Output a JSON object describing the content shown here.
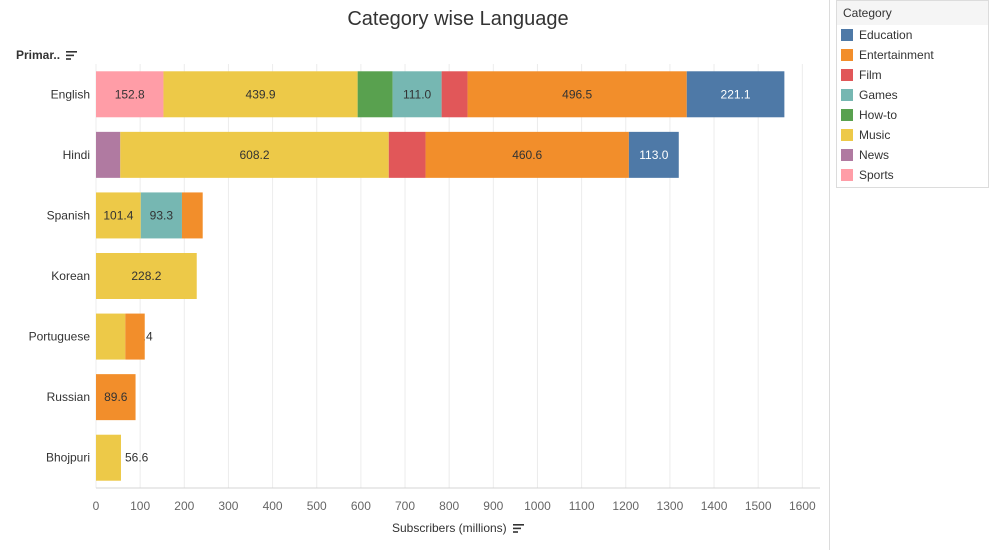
{
  "title": "Category wise Language",
  "row_header": "Primar..",
  "x_axis_title": "Subscribers (millions)",
  "legend_title": "Category",
  "categories": [
    {
      "name": "Education",
      "color": "#4e79a7"
    },
    {
      "name": "Entertainment",
      "color": "#f28e2b"
    },
    {
      "name": "Film",
      "color": "#e15759"
    },
    {
      "name": "Games",
      "color": "#76b7b2"
    },
    {
      "name": "How-to",
      "color": "#59a14f"
    },
    {
      "name": "Music",
      "color": "#edc948"
    },
    {
      "name": "News",
      "color": "#b07aa1"
    },
    {
      "name": "Sports",
      "color": "#ff9da7"
    }
  ],
  "chart_data": {
    "type": "bar",
    "orientation": "horizontal",
    "stacked": true,
    "title": "Category wise Language",
    "xlabel": "Subscribers (millions)",
    "ylabel": "Primar..",
    "xlim": [
      0,
      1640
    ],
    "xticks": [
      0,
      100,
      200,
      300,
      400,
      500,
      600,
      700,
      800,
      900,
      1000,
      1100,
      1200,
      1300,
      1400,
      1500,
      1600
    ],
    "grid": true,
    "legend_position": "right",
    "rows": [
      {
        "label": "English",
        "segments": [
          {
            "category": "Sports",
            "value": 152.8,
            "label": "152.8"
          },
          {
            "category": "Music",
            "value": 439.9,
            "label": "439.9"
          },
          {
            "category": "How-to",
            "value": 79.2,
            "label": "79.2"
          },
          {
            "category": "Games",
            "value": 111.0,
            "label": "111.0"
          },
          {
            "category": "Film",
            "value": 58.8,
            "label": "58.8"
          },
          {
            "category": "Entertainment",
            "value": 496.5,
            "label": "496.5"
          },
          {
            "category": "Education",
            "value": 221.1,
            "label": "221.1"
          }
        ]
      },
      {
        "label": "Hindi",
        "segments": [
          {
            "category": "News",
            "value": 55.0,
            "label": ""
          },
          {
            "category": "Music",
            "value": 608.2,
            "label": "608.2"
          },
          {
            "category": "Film",
            "value": 83.3,
            "label": "83.3"
          },
          {
            "category": "Entertainment",
            "value": 460.6,
            "label": "460.6"
          },
          {
            "category": "Education",
            "value": 113.0,
            "label": "113.0"
          }
        ]
      },
      {
        "label": "Spanish",
        "segments": [
          {
            "category": "Music",
            "value": 101.4,
            "label": "101.4"
          },
          {
            "category": "Games",
            "value": 93.3,
            "label": "93.3"
          },
          {
            "category": "Entertainment",
            "value": 47.0,
            "label": ""
          }
        ]
      },
      {
        "label": "Korean",
        "segments": [
          {
            "category": "Music",
            "value": 228.2,
            "label": "228.2"
          }
        ]
      },
      {
        "label": "Portuguese",
        "segments": [
          {
            "category": "Music",
            "value": 66.4,
            "label": "66.4"
          },
          {
            "category": "Entertainment",
            "value": 44.0,
            "label": ""
          }
        ]
      },
      {
        "label": "Russian",
        "segments": [
          {
            "category": "Entertainment",
            "value": 89.6,
            "label": "89.6"
          }
        ]
      },
      {
        "label": "Bhojpuri",
        "segments": [
          {
            "category": "Music",
            "value": 56.6,
            "label": "56.6"
          }
        ]
      }
    ]
  }
}
